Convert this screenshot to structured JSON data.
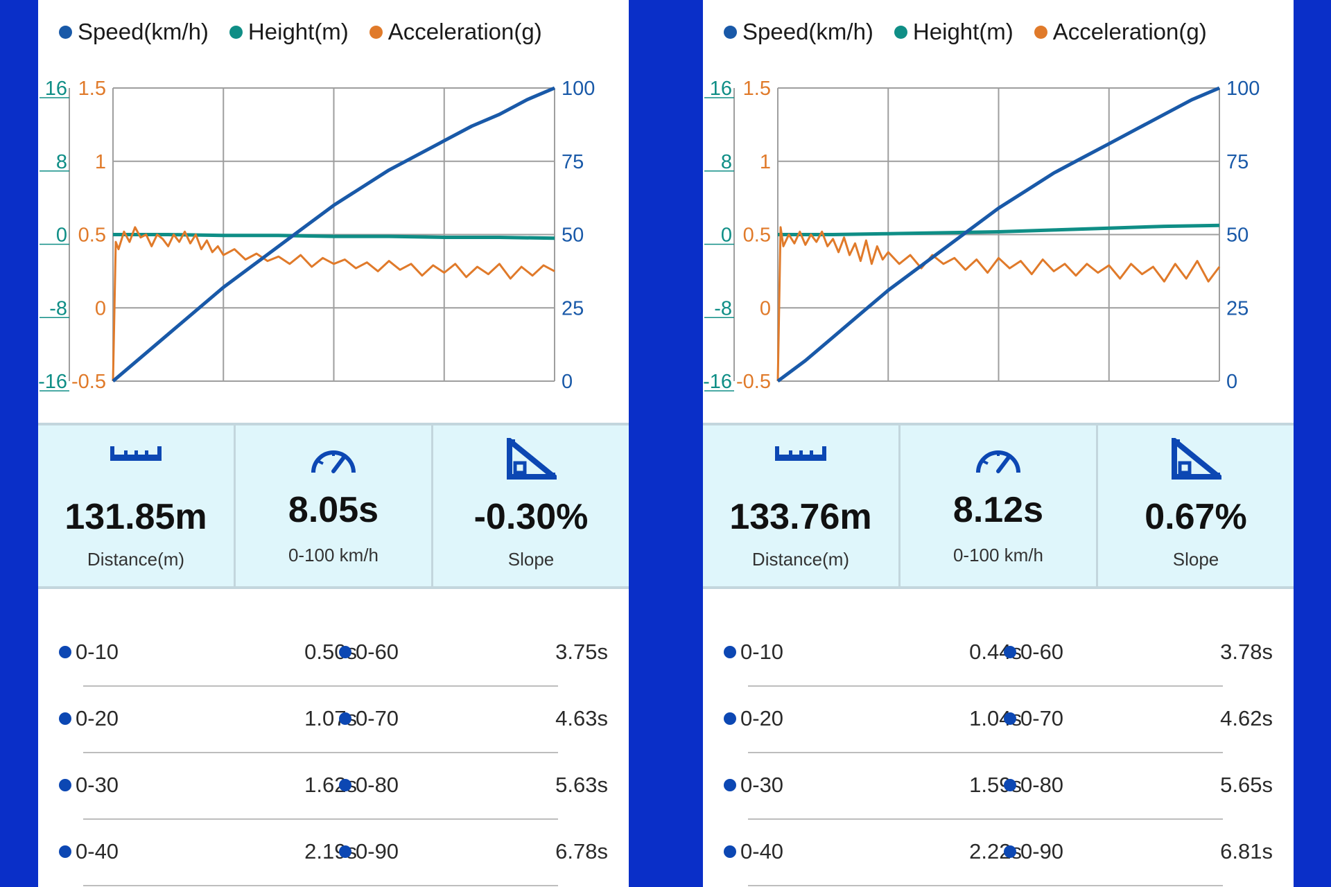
{
  "legend": {
    "speed": "Speed(km/h)",
    "height": "Height(m)",
    "acceleration": "Acceleration(g)"
  },
  "colors": {
    "background": "#0a2fc8",
    "speed": "#1959a8",
    "height": "#0f8e86",
    "acceleration": "#e07a2a",
    "stats_background": "#dff6fb",
    "split_dot": "#0c47b3"
  },
  "icons": {
    "distance": "ruler-icon",
    "time": "speedometer-icon",
    "slope": "slope-icon"
  },
  "panels": [
    {
      "stats": {
        "distance_value": "131.85m",
        "distance_label": "Distance(m)",
        "time_value": "8.05s",
        "time_label": "0-100 km/h",
        "slope_value": "-0.30%",
        "slope_label": "Slope"
      },
      "splits": [
        {
          "label_a": "0-10",
          "time_a": "0.50s",
          "label_b": "0-60",
          "time_b": "3.75s"
        },
        {
          "label_a": "0-20",
          "time_a": "1.07s",
          "label_b": "0-70",
          "time_b": "4.63s"
        },
        {
          "label_a": "0-30",
          "time_a": "1.62s",
          "label_b": "0-80",
          "time_b": "5.63s"
        },
        {
          "label_a": "0-40",
          "time_a": "2.19s",
          "label_b": "0-90",
          "time_b": "6.78s"
        }
      ]
    },
    {
      "stats": {
        "distance_value": "133.76m",
        "distance_label": "Distance(m)",
        "time_value": "8.12s",
        "time_label": "0-100 km/h",
        "slope_value": "0.67%",
        "slope_label": "Slope"
      },
      "splits": [
        {
          "label_a": "0-10",
          "time_a": "0.44s",
          "label_b": "0-60",
          "time_b": "3.78s"
        },
        {
          "label_a": "0-20",
          "time_a": "1.04s",
          "label_b": "0-70",
          "time_b": "4.62s"
        },
        {
          "label_a": "0-30",
          "time_a": "1.59s",
          "label_b": "0-80",
          "time_b": "5.65s"
        },
        {
          "label_a": "0-40",
          "time_a": "2.22s",
          "label_b": "0-90",
          "time_b": "6.81s"
        }
      ]
    }
  ],
  "chart_data": [
    {
      "type": "line",
      "legend_placement": "top",
      "grid": true,
      "axes": {
        "height_ticks": [
          "16",
          "8",
          "0",
          "-8",
          "-16"
        ],
        "accel_ticks": [
          "1.5",
          "1",
          "0.5",
          "0",
          "-0.5"
        ],
        "speed_ticks": [
          "100",
          "75",
          "50",
          "25",
          "0"
        ],
        "height_range": [
          -16,
          16
        ],
        "accel_range": [
          -0.5,
          1.5
        ],
        "speed_range": [
          0,
          100
        ]
      },
      "x_range": [
        0,
        8
      ],
      "series": [
        {
          "name": "Speed(km/h)",
          "axis": "speed",
          "x": [
            0,
            0.5,
            1,
            1.5,
            2,
            2.5,
            3,
            3.5,
            4,
            4.5,
            5,
            5.5,
            6,
            6.5,
            7,
            7.5,
            8
          ],
          "y": [
            0,
            8,
            16,
            24,
            32,
            39,
            46,
            53,
            60,
            66,
            72,
            77,
            82,
            87,
            91,
            96,
            100
          ]
        },
        {
          "name": "Height(m)",
          "axis": "height",
          "x": [
            0,
            1,
            2,
            3,
            4,
            5,
            6,
            7,
            8
          ],
          "y": [
            0.0,
            0.0,
            -0.1,
            -0.1,
            -0.2,
            -0.2,
            -0.3,
            -0.3,
            -0.4
          ]
        },
        {
          "name": "Acceleration(g)",
          "axis": "accel",
          "x": [
            0,
            0.05,
            0.1,
            0.2,
            0.3,
            0.4,
            0.5,
            0.6,
            0.7,
            0.8,
            0.9,
            1.0,
            1.1,
            1.2,
            1.3,
            1.4,
            1.5,
            1.6,
            1.7,
            1.8,
            1.9,
            2.0,
            2.2,
            2.4,
            2.6,
            2.8,
            3.0,
            3.2,
            3.4,
            3.6,
            3.8,
            4.0,
            4.2,
            4.4,
            4.6,
            4.8,
            5.0,
            5.2,
            5.4,
            5.6,
            5.8,
            6.0,
            6.2,
            6.4,
            6.6,
            6.8,
            7.0,
            7.2,
            7.4,
            7.6,
            7.8,
            8.0
          ],
          "y": [
            -0.5,
            0.45,
            0.4,
            0.52,
            0.45,
            0.55,
            0.48,
            0.5,
            0.42,
            0.5,
            0.47,
            0.42,
            0.5,
            0.45,
            0.52,
            0.44,
            0.5,
            0.4,
            0.46,
            0.38,
            0.42,
            0.36,
            0.4,
            0.33,
            0.37,
            0.32,
            0.35,
            0.3,
            0.36,
            0.28,
            0.34,
            0.3,
            0.33,
            0.27,
            0.31,
            0.25,
            0.32,
            0.26,
            0.3,
            0.22,
            0.29,
            0.24,
            0.3,
            0.21,
            0.28,
            0.23,
            0.3,
            0.2,
            0.28,
            0.22,
            0.29,
            0.25
          ]
        }
      ]
    },
    {
      "type": "line",
      "legend_placement": "top",
      "grid": true,
      "axes": {
        "height_ticks": [
          "16",
          "8",
          "0",
          "-8",
          "-16"
        ],
        "accel_ticks": [
          "1.5",
          "1",
          "0.5",
          "0",
          "-0.5"
        ],
        "speed_ticks": [
          "100",
          "75",
          "50",
          "25",
          "0"
        ],
        "height_range": [
          -16,
          16
        ],
        "accel_range": [
          -0.5,
          1.5
        ],
        "speed_range": [
          0,
          100
        ]
      },
      "x_range": [
        0,
        8
      ],
      "series": [
        {
          "name": "Speed(km/h)",
          "axis": "speed",
          "x": [
            0,
            0.5,
            1,
            1.5,
            2,
            2.5,
            3,
            3.5,
            4,
            4.5,
            5,
            5.5,
            6,
            6.5,
            7,
            7.5,
            8
          ],
          "y": [
            0,
            7,
            15,
            23,
            31,
            38,
            45,
            52,
            59,
            65,
            71,
            76,
            81,
            86,
            91,
            96,
            100
          ]
        },
        {
          "name": "Height(m)",
          "axis": "height",
          "x": [
            0,
            1,
            2,
            3,
            4,
            5,
            6,
            7,
            8
          ],
          "y": [
            0.0,
            0.0,
            0.1,
            0.2,
            0.3,
            0.5,
            0.7,
            0.9,
            1.0
          ]
        },
        {
          "name": "Acceleration(g)",
          "axis": "accel",
          "x": [
            0,
            0.05,
            0.1,
            0.2,
            0.3,
            0.4,
            0.5,
            0.6,
            0.7,
            0.8,
            0.9,
            1.0,
            1.1,
            1.2,
            1.3,
            1.4,
            1.5,
            1.6,
            1.7,
            1.8,
            1.9,
            2.0,
            2.2,
            2.4,
            2.6,
            2.8,
            3.0,
            3.2,
            3.4,
            3.6,
            3.8,
            4.0,
            4.2,
            4.4,
            4.6,
            4.8,
            5.0,
            5.2,
            5.4,
            5.6,
            5.8,
            6.0,
            6.2,
            6.4,
            6.6,
            6.8,
            7.0,
            7.2,
            7.4,
            7.6,
            7.8,
            8.0
          ],
          "y": [
            -0.5,
            0.55,
            0.42,
            0.5,
            0.44,
            0.52,
            0.43,
            0.5,
            0.45,
            0.52,
            0.42,
            0.47,
            0.38,
            0.48,
            0.36,
            0.44,
            0.32,
            0.46,
            0.3,
            0.42,
            0.33,
            0.38,
            0.3,
            0.36,
            0.27,
            0.36,
            0.3,
            0.34,
            0.26,
            0.33,
            0.24,
            0.34,
            0.27,
            0.32,
            0.23,
            0.33,
            0.25,
            0.3,
            0.22,
            0.3,
            0.24,
            0.29,
            0.2,
            0.3,
            0.23,
            0.28,
            0.18,
            0.3,
            0.2,
            0.32,
            0.18,
            0.28
          ]
        }
      ]
    }
  ]
}
